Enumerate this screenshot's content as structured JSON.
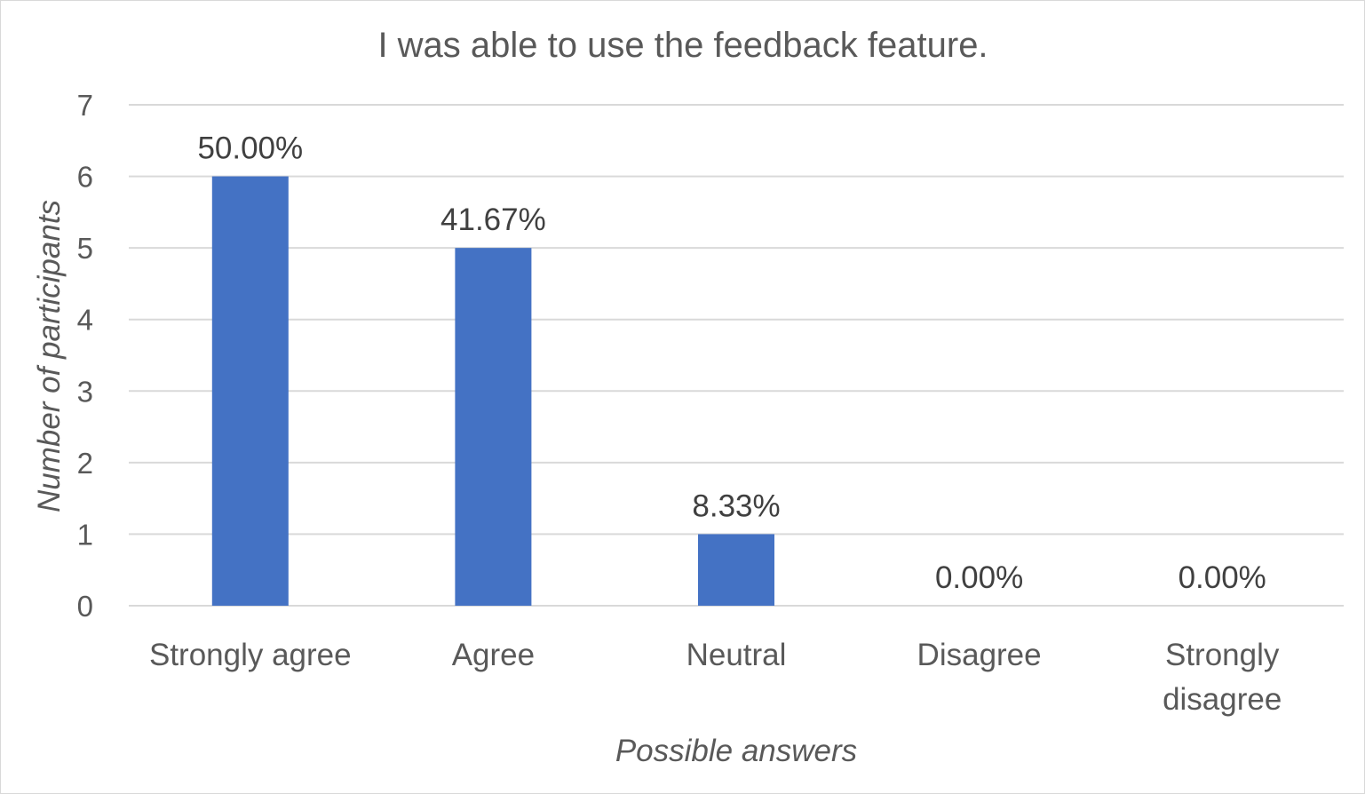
{
  "chart_data": {
    "type": "bar",
    "title": "I was able to use the feedback feature.",
    "xlabel": "Possible answers",
    "ylabel": "Number of participants",
    "categories": [
      [
        "Strongly agree"
      ],
      [
        "Agree"
      ],
      [
        "Neutral"
      ],
      [
        "Disagree"
      ],
      [
        "Strongly",
        "disagree"
      ]
    ],
    "values": [
      6,
      5,
      1,
      0,
      0
    ],
    "data_labels": [
      "50.00%",
      "41.67%",
      "8.33%",
      "0.00%",
      "0.00%"
    ],
    "ylim": [
      0,
      7
    ],
    "yticks": [
      "0",
      "1",
      "2",
      "3",
      "4",
      "5",
      "6",
      "7"
    ],
    "grid": true,
    "legend": "none",
    "bar_color": "#4472c4",
    "grid_color": "#d9d9d9"
  }
}
